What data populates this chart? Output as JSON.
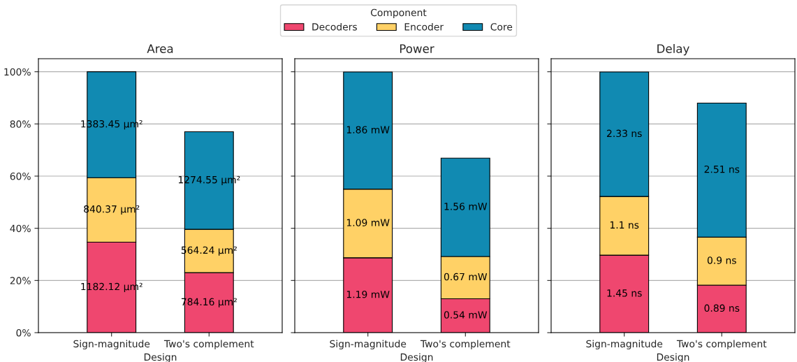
{
  "chart_data": [
    {
      "type": "bar",
      "title": "Area",
      "xlabel": "Design",
      "categories": [
        "Sign-magnitude",
        "Two's complement"
      ],
      "stacked": true,
      "ylim": [
        0,
        105
      ],
      "yticks": [
        {
          "value": 0,
          "label": "0%"
        },
        {
          "value": 20,
          "label": "20%"
        },
        {
          "value": 40,
          "label": "40%"
        },
        {
          "value": 60,
          "label": "60%"
        },
        {
          "value": 80,
          "label": "80%"
        },
        {
          "value": 100,
          "label": "100%"
        }
      ],
      "grid": "y",
      "legend": "top",
      "legend_title": "Component",
      "series": [
        {
          "name": "Decoders",
          "color": "#ef476f",
          "values": [
            34.7,
            23.0
          ]
        },
        {
          "name": "Encoder",
          "color": "#ffd166",
          "values": [
            24.7,
            16.6
          ]
        },
        {
          "name": "Core",
          "color": "#118ab2",
          "values": [
            40.6,
            37.4
          ]
        }
      ],
      "annotations": [
        "1182.12 µm²",
        "784.16 µm²",
        "840.37 µm²",
        "564.24 µm²",
        "1383.45 µm²",
        "1274.55 µm²"
      ]
    },
    {
      "type": "bar",
      "title": "Power",
      "xlabel": "Design",
      "categories": [
        "Sign-magnitude",
        "Two's complement"
      ],
      "stacked": true,
      "ylim": [
        0,
        105
      ],
      "yticks": [
        {
          "value": 0,
          "label": null
        },
        {
          "value": 20,
          "label": null
        },
        {
          "value": 40,
          "label": null
        },
        {
          "value": 60,
          "label": null
        },
        {
          "value": 80,
          "label": null
        },
        {
          "value": 100,
          "label": null
        }
      ],
      "grid": "y",
      "tick_labels": "x",
      "series": [
        {
          "color": "#ef476f",
          "values": [
            28.7,
            13.0
          ]
        },
        {
          "color": "#ffd166",
          "values": [
            26.3,
            16.2
          ]
        },
        {
          "color": "#118ab2",
          "values": [
            44.9,
            37.7
          ]
        }
      ],
      "annotations": [
        "1.19 mW",
        "0.54 mW",
        "1.09 mW",
        "0.67 mW",
        "1.86 mW",
        "1.56 mW"
      ]
    },
    {
      "type": "bar",
      "title": "Delay",
      "xlabel": "Design",
      "categories": [
        "Sign-magnitude",
        "Two's complement"
      ],
      "stacked": true,
      "ylim": [
        0,
        105
      ],
      "yticks": [
        {
          "value": 0,
          "label": null
        },
        {
          "value": 20,
          "label": null
        },
        {
          "value": 40,
          "label": null
        },
        {
          "value": 60,
          "label": null
        },
        {
          "value": 80,
          "label": null
        },
        {
          "value": 100,
          "label": null
        }
      ],
      "grid": "y",
      "tick_labels": "x",
      "series": [
        {
          "color": "#ef476f",
          "values": [
            29.7,
            18.2
          ]
        },
        {
          "color": "#ffd166",
          "values": [
            22.5,
            18.4
          ]
        },
        {
          "color": "#118ab2",
          "values": [
            47.7,
            51.4
          ]
        }
      ],
      "annotations": [
        "1.45 ns",
        "0.89 ns",
        "1.1 ns",
        "0.9 ns",
        "2.33 ns",
        "2.51 ns"
      ]
    }
  ]
}
